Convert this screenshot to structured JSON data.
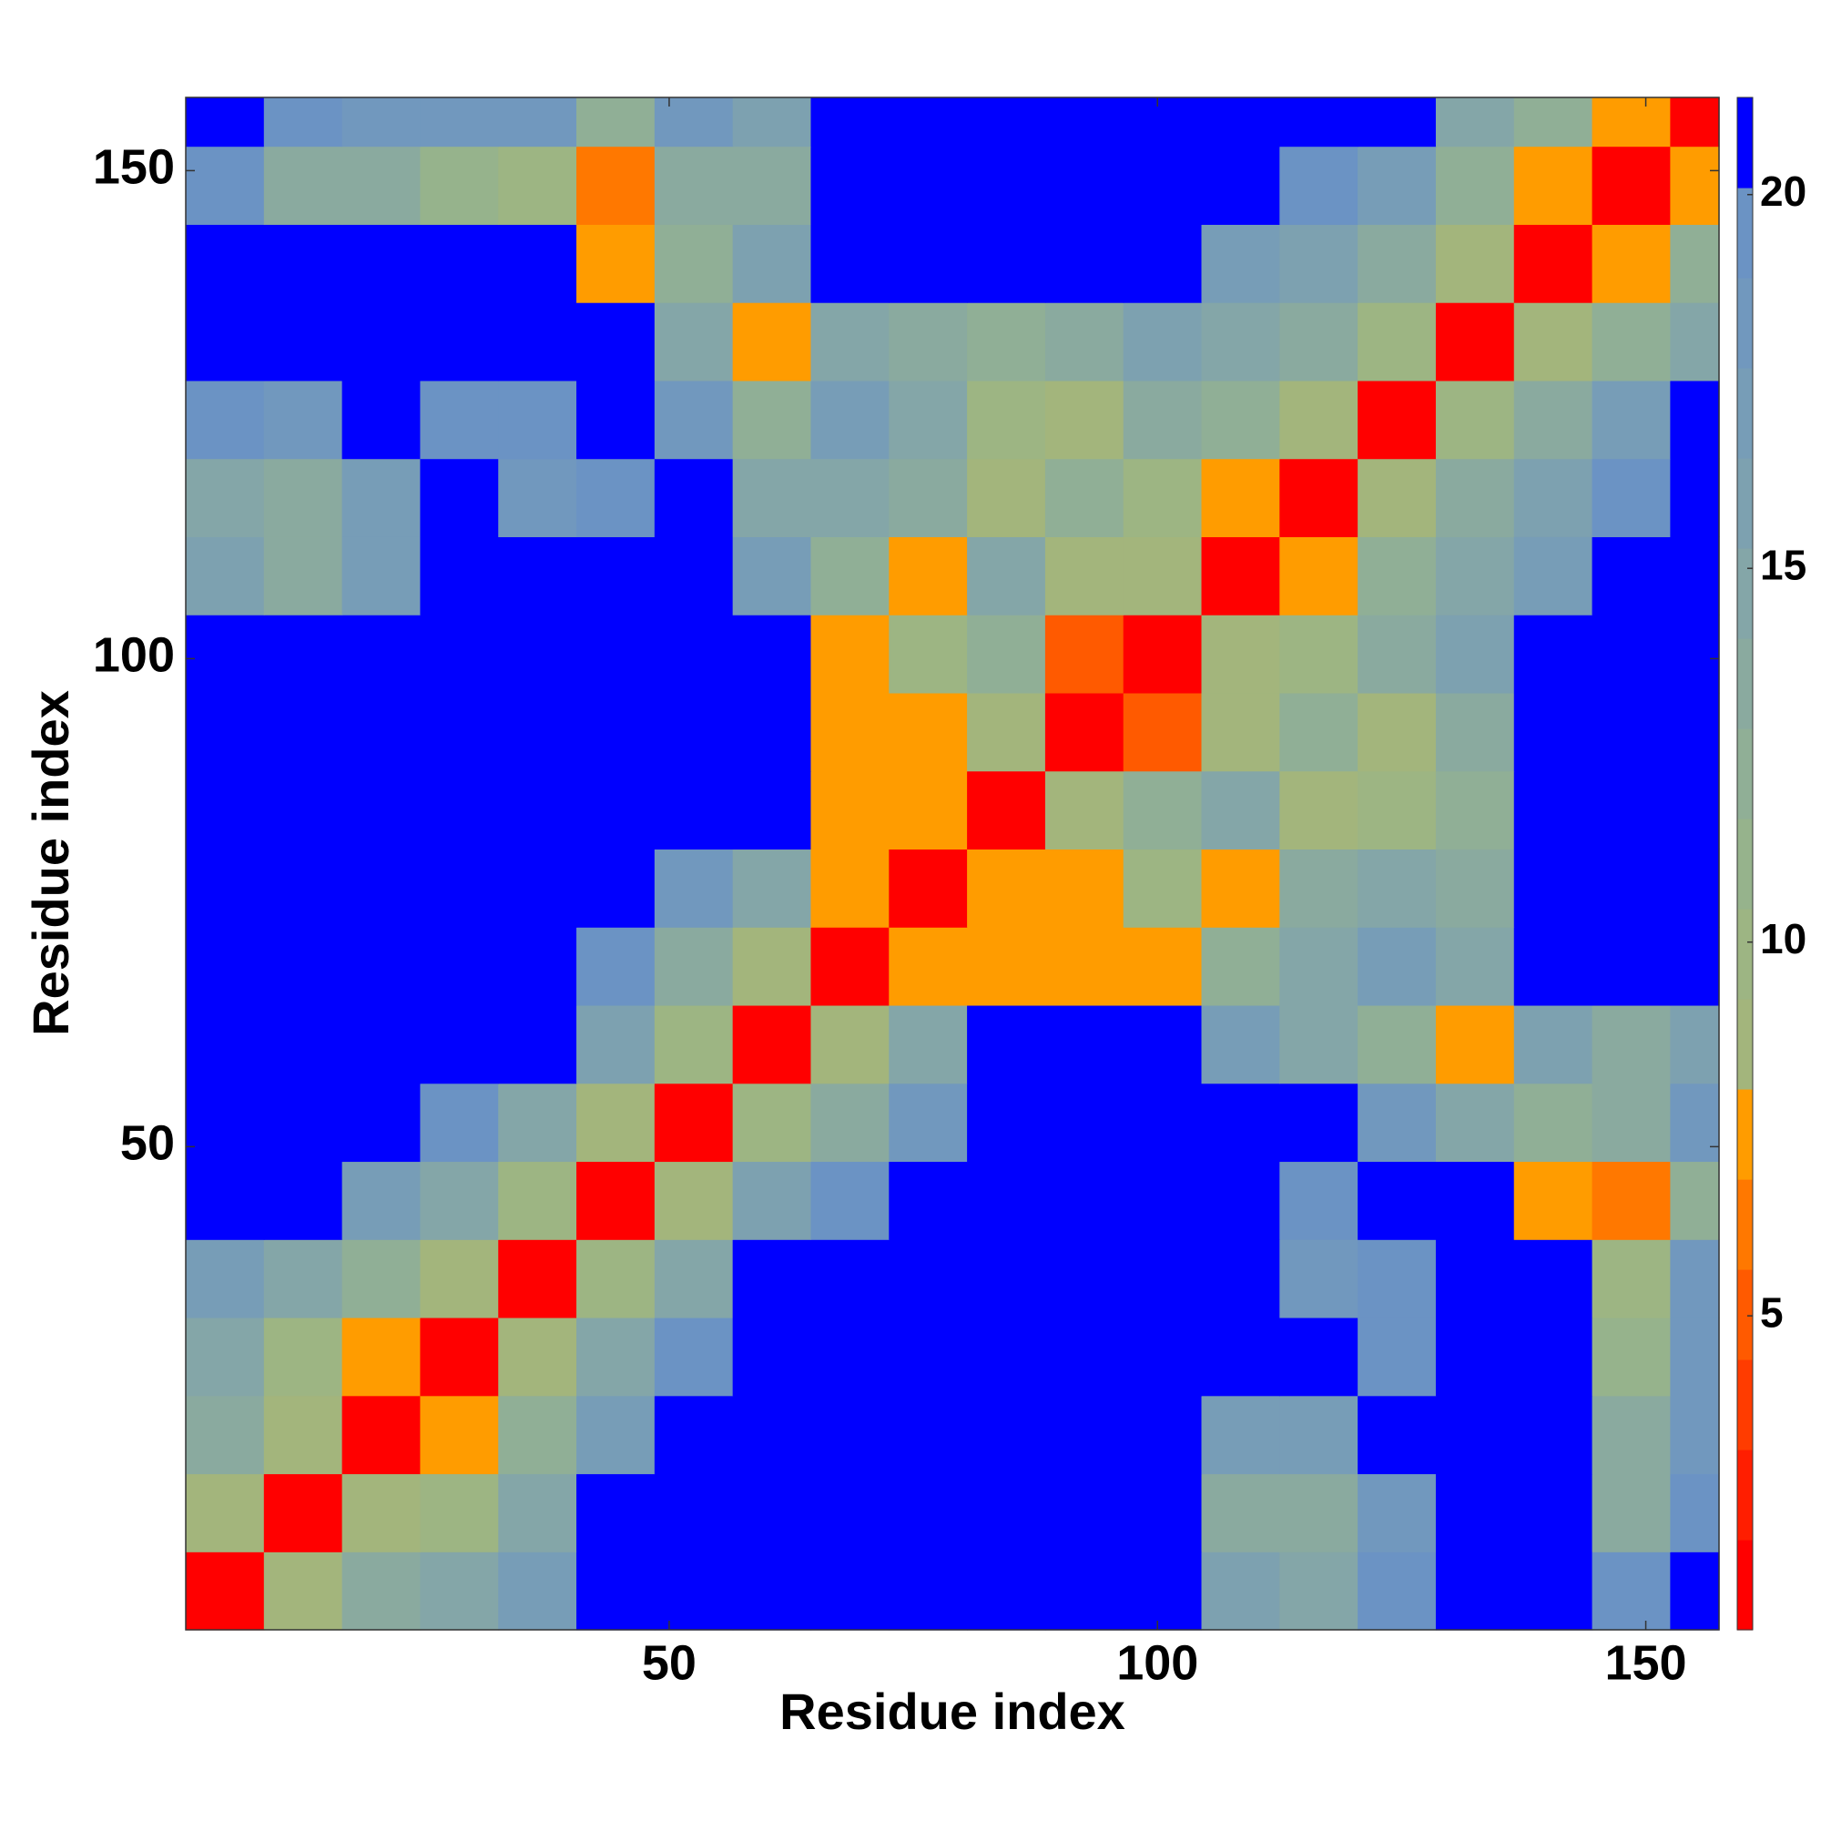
{
  "chart_data": {
    "type": "heatmap",
    "xlabel": "Residue index",
    "ylabel": "Residue index",
    "xbins": [
      0.5,
      8.5,
      16.5,
      24.5,
      32.5,
      40.5,
      48.5,
      56.5,
      64.5,
      72.5,
      80.5,
      88.5,
      96.5,
      104.5,
      112.5,
      120.5,
      128.5,
      136.5,
      144.5,
      152.5,
      157.5
    ],
    "ybins": [
      0.5,
      8.5,
      16.5,
      24.5,
      32.5,
      40.5,
      48.5,
      56.5,
      64.5,
      72.5,
      80.5,
      88.5,
      96.5,
      104.5,
      112.5,
      120.5,
      128.5,
      136.5,
      144.5,
      152.5,
      157.5
    ],
    "z": [
      [
        2,
        9,
        14,
        15,
        17,
        21,
        21,
        21,
        21,
        21,
        21,
        21,
        21,
        16,
        15,
        19,
        21,
        21,
        19,
        21
      ],
      [
        9,
        2,
        9,
        10,
        15,
        21,
        21,
        21,
        21,
        21,
        21,
        21,
        21,
        13,
        14,
        18,
        21,
        21,
        14,
        19
      ],
      [
        14,
        9,
        2,
        8,
        12,
        17,
        21,
        21,
        21,
        21,
        21,
        21,
        21,
        17,
        17,
        21,
        21,
        21,
        13,
        18
      ],
      [
        15,
        10,
        8,
        2,
        9,
        15,
        19,
        21,
        21,
        21,
        21,
        21,
        21,
        21,
        21,
        19,
        21,
        21,
        11,
        18
      ],
      [
        17,
        15,
        12,
        9,
        2,
        10,
        15,
        21,
        21,
        21,
        21,
        21,
        21,
        21,
        18,
        19,
        21,
        21,
        10,
        18
      ],
      [
        21,
        21,
        17,
        15,
        10,
        2,
        9,
        16,
        19,
        21,
        21,
        21,
        21,
        21,
        19,
        21,
        21,
        7,
        6,
        12
      ],
      [
        21,
        21,
        21,
        19,
        15,
        9,
        2,
        10,
        14,
        18,
        21,
        21,
        21,
        21,
        21,
        18,
        15,
        12,
        13,
        18
      ],
      [
        21,
        21,
        21,
        21,
        21,
        16,
        10,
        2,
        9,
        15,
        21,
        21,
        21,
        17,
        15,
        12,
        7,
        16,
        14,
        16
      ],
      [
        21,
        21,
        21,
        21,
        21,
        19,
        14,
        9,
        2,
        8,
        7,
        7,
        7,
        12,
        15,
        17,
        15,
        21,
        21,
        21
      ],
      [
        21,
        21,
        21,
        21,
        21,
        21,
        18,
        15,
        8,
        2,
        7,
        8,
        10,
        7,
        14,
        15,
        13,
        21,
        21,
        21
      ],
      [
        21,
        21,
        21,
        21,
        21,
        21,
        21,
        21,
        7,
        7,
        2,
        9,
        12,
        15,
        9,
        10,
        12,
        21,
        21,
        21
      ],
      [
        21,
        21,
        21,
        21,
        21,
        21,
        21,
        21,
        7,
        8,
        9,
        2,
        5,
        9,
        12,
        9,
        14,
        21,
        21,
        21
      ],
      [
        21,
        21,
        21,
        21,
        21,
        21,
        21,
        21,
        7,
        10,
        12,
        5,
        2,
        9,
        10,
        13,
        16,
        21,
        21,
        21
      ],
      [
        16,
        13,
        17,
        21,
        21,
        21,
        21,
        17,
        12,
        7,
        15,
        9,
        9,
        2,
        8,
        12,
        15,
        17,
        21,
        21
      ],
      [
        15,
        14,
        17,
        21,
        18,
        19,
        21,
        15,
        15,
        14,
        9,
        12,
        10,
        8,
        2,
        9,
        14,
        16,
        19,
        21
      ],
      [
        19,
        18,
        21,
        19,
        19,
        21,
        18,
        12,
        17,
        15,
        10,
        9,
        13,
        12,
        9,
        2,
        10,
        13,
        17,
        21
      ],
      [
        21,
        21,
        21,
        21,
        21,
        21,
        15,
        7,
        15,
        13,
        12,
        14,
        16,
        15,
        14,
        10,
        2,
        9,
        12,
        15
      ],
      [
        21,
        21,
        21,
        21,
        21,
        7,
        12,
        16,
        21,
        21,
        21,
        21,
        21,
        17,
        16,
        13,
        9,
        2,
        8,
        12
      ],
      [
        19,
        14,
        13,
        11,
        10,
        6,
        13,
        14,
        21,
        21,
        21,
        21,
        21,
        21,
        19,
        17,
        12,
        8,
        2,
        8
      ],
      [
        21,
        19,
        18,
        18,
        18,
        12,
        18,
        16,
        21,
        21,
        21,
        21,
        21,
        21,
        21,
        21,
        15,
        12,
        8,
        2
      ]
    ],
    "xlim": [
      0.5,
      157.5
    ],
    "ylim": [
      0.5,
      157.5
    ],
    "xticks": [
      50,
      100,
      150
    ],
    "yticks": [
      50,
      100,
      150
    ],
    "zlim": [
      0.8,
      21.3
    ],
    "zticks": [
      5,
      10,
      15,
      20
    ],
    "colors": [
      "#ff0000",
      "#ff1e00",
      "#ff3c00",
      "#ff5a00",
      "#ff7800",
      "#ff9c00",
      "#a3b57c",
      "#9db583",
      "#96b38c",
      "#90af96",
      "#8aaa9f",
      "#84a6a8",
      "#7da1b0",
      "#779db7",
      "#7198be",
      "#6b93c4",
      "#0000ff"
    ]
  }
}
